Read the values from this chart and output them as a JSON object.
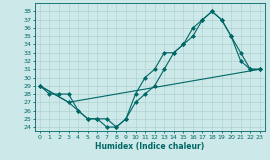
{
  "xlabel": "Humidex (Indice chaleur)",
  "ylabel": "",
  "background_color": "#cce8e8",
  "grid_color": "#aacccc",
  "line_color": "#006666",
  "xlim": [
    -0.5,
    23.5
  ],
  "ylim": [
    23.5,
    39.0
  ],
  "xticks": [
    0,
    1,
    2,
    3,
    4,
    5,
    6,
    7,
    8,
    9,
    10,
    11,
    12,
    13,
    14,
    15,
    16,
    17,
    18,
    19,
    20,
    21,
    22,
    23
  ],
  "yticks": [
    24,
    25,
    26,
    27,
    28,
    29,
    30,
    31,
    32,
    33,
    34,
    35,
    36,
    37,
    38
  ],
  "line1_x": [
    0,
    1,
    2,
    3,
    4,
    5,
    6,
    7,
    8,
    9,
    10,
    11,
    12,
    13,
    14,
    15,
    16,
    17,
    18,
    19,
    20,
    21,
    22,
    23
  ],
  "line1_y": [
    29,
    28,
    28,
    28,
    26,
    25,
    25,
    24,
    24,
    25,
    28,
    30,
    31,
    33,
    33,
    34,
    35,
    37,
    38,
    37,
    35,
    32,
    31,
    31
  ],
  "line2_x": [
    0,
    3,
    4,
    5,
    6,
    7,
    8,
    9,
    10,
    11,
    12,
    13,
    14,
    15,
    16,
    17,
    18,
    19,
    20,
    21,
    22,
    23
  ],
  "line2_y": [
    29,
    27,
    26,
    25,
    25,
    25,
    24,
    25,
    27,
    28,
    29,
    31,
    33,
    34,
    36,
    37,
    38,
    37,
    35,
    33,
    31,
    31
  ],
  "line3_x": [
    0,
    3,
    23
  ],
  "line3_y": [
    29,
    27,
    31
  ],
  "marker_size": 2.5,
  "line_width": 0.8,
  "tick_fontsize": 4.5,
  "xlabel_fontsize": 5.5
}
